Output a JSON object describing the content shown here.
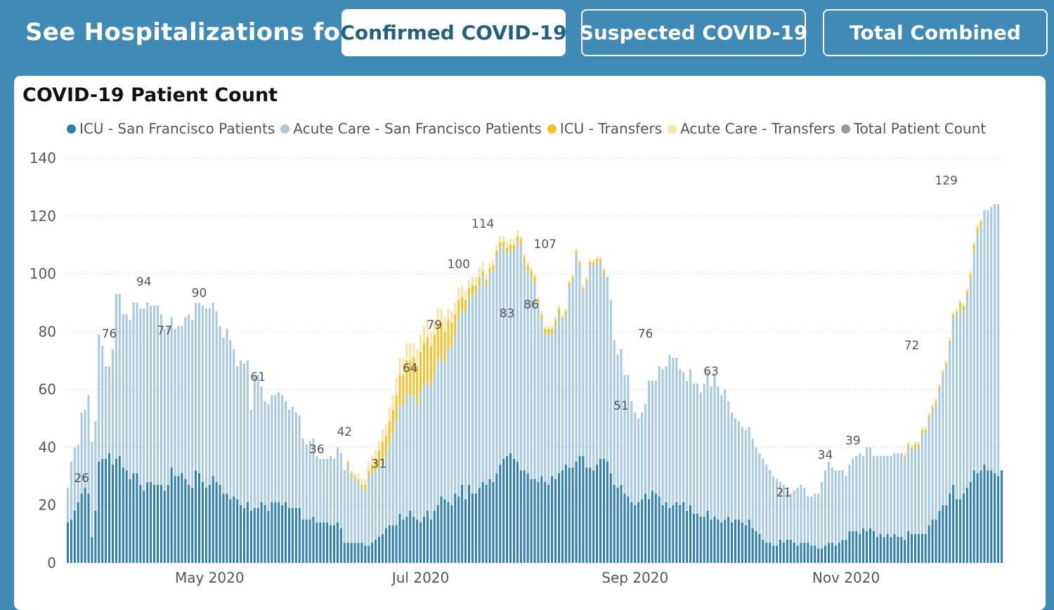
{
  "header": {
    "title": "See Hospitalizations for:",
    "tabs": [
      {
        "label": "Confirmed COVID-19",
        "active": true
      },
      {
        "label": "Suspected COVID-19",
        "active": false
      },
      {
        "label": "Total Combined",
        "active": false
      }
    ]
  },
  "colors": {
    "background": "#3f8bb5",
    "icu_sf": "#2e7fab",
    "acute_sf": "#a7cadf",
    "icu_transfers": "#f2c12e",
    "acute_transfers": "#f9e3a8",
    "total": "#999999"
  },
  "chart_data": {
    "type": "bar",
    "stacked": true,
    "title": "COVID-19 Patient Count",
    "x_start": "2020-03-21",
    "x_ticks": [
      "May 2020",
      "Jul 2020",
      "Sep 2020",
      "Nov 2020"
    ],
    "ylim": [
      0,
      140
    ],
    "y_ticks": [
      0,
      20,
      40,
      60,
      80,
      100,
      120,
      140
    ],
    "grid": true,
    "legend_position": "top",
    "series": [
      {
        "name": "ICU - San Francisco Patients",
        "color": "#2e7fab",
        "values": [
          14,
          15,
          18,
          21,
          24,
          26,
          24,
          9,
          18,
          35,
          36,
          36,
          38,
          34,
          36,
          37,
          33,
          32,
          29,
          31,
          31,
          27,
          25,
          28,
          28,
          27,
          27,
          27,
          25,
          27,
          33,
          30,
          30,
          31,
          29,
          27,
          26,
          32,
          31,
          28,
          26,
          27,
          30,
          28,
          27,
          24,
          24,
          22,
          23,
          22,
          20,
          19,
          21,
          18,
          19,
          19,
          21,
          20,
          18,
          21,
          21,
          21,
          20,
          21,
          19,
          19,
          19,
          19,
          15,
          15,
          15,
          16,
          14,
          14,
          14,
          14,
          13,
          13,
          14,
          12,
          7,
          7,
          7,
          7,
          7,
          7,
          6,
          6,
          7,
          8,
          9,
          10,
          12,
          13,
          13,
          13,
          17,
          15,
          16,
          18,
          16,
          15,
          14,
          16,
          18,
          15,
          18,
          20,
          23,
          22,
          21,
          20,
          24,
          23,
          27,
          22,
          27,
          24,
          24,
          26,
          28,
          27,
          29,
          28,
          31,
          34,
          36,
          37,
          38,
          36,
          35,
          32,
          32,
          31,
          29,
          29,
          28,
          30,
          28,
          27,
          30,
          29,
          31,
          32,
          34,
          33,
          33,
          35,
          37,
          37,
          33,
          33,
          32,
          34,
          36,
          36,
          35,
          31,
          27,
          26,
          27,
          24,
          23,
          21,
          20,
          21,
          22,
          24,
          22,
          25,
          24,
          23,
          20,
          21,
          19,
          20,
          21,
          20,
          21,
          18,
          20,
          17,
          17,
          16,
          16,
          18,
          15,
          16,
          15,
          14,
          15,
          16,
          14,
          15,
          15,
          14,
          13,
          15,
          12,
          11,
          10,
          8,
          7,
          7,
          6,
          6,
          8,
          7,
          8,
          8,
          7,
          6,
          7,
          7,
          7,
          6,
          6,
          5,
          5,
          6,
          7,
          7,
          6,
          7,
          8,
          8,
          11,
          11,
          11,
          10,
          12,
          11,
          12,
          11,
          9,
          10,
          9,
          10,
          9,
          10,
          9,
          9,
          8,
          11,
          10,
          10,
          10,
          10,
          10,
          13,
          15,
          15,
          18,
          20,
          20,
          24,
          27,
          22,
          22,
          24,
          26,
          28,
          32,
          31,
          32,
          34,
          32,
          32,
          31,
          30,
          32
        ]
      },
      {
        "name": "Acute Care - San Francisco Patients",
        "color": "#a7cadf",
        "values": [
          12,
          20,
          22,
          20,
          28,
          27,
          34,
          33,
          31,
          44,
          39,
          32,
          30,
          40,
          57,
          56,
          53,
          54,
          55,
          59,
          59,
          61,
          63,
          62,
          61,
          62,
          62,
          59,
          56,
          55,
          52,
          51,
          52,
          51,
          56,
          59,
          58,
          58,
          59,
          61,
          62,
          61,
          60,
          59,
          55,
          54,
          57,
          55,
          51,
          46,
          50,
          50,
          49,
          35,
          46,
          46,
          40,
          36,
          37,
          37,
          37,
          38,
          38,
          35,
          34,
          35,
          33,
          32,
          28,
          26,
          27,
          27,
          23,
          22,
          22,
          22,
          24,
          23,
          26,
          26,
          25,
          27,
          23,
          22,
          21,
          19,
          19,
          24,
          24,
          24,
          24,
          25,
          25,
          28,
          32,
          36,
          38,
          39,
          42,
          40,
          42,
          40,
          45,
          45,
          45,
          46,
          47,
          50,
          48,
          47,
          53,
          55,
          55,
          62,
          60,
          65,
          64,
          69,
          69,
          70,
          71,
          69,
          71,
          73,
          75,
          75,
          73,
          70,
          70,
          72,
          76,
          78,
          72,
          70,
          70,
          68,
          61,
          54,
          51,
          52,
          49,
          53,
          55,
          52,
          52,
          63,
          65,
          72,
          66,
          57,
          64,
          70,
          71,
          70,
          68,
          64,
          64,
          60,
          50,
          46,
          47,
          41,
          42,
          35,
          32,
          29,
          30,
          31,
          41,
          38,
          39,
          45,
          47,
          47,
          53,
          51,
          50,
          47,
          45,
          45,
          47,
          45,
          45,
          43,
          46,
          48,
          46,
          49,
          46,
          44,
          45,
          40,
          38,
          35,
          34,
          33,
          33,
          32,
          31,
          29,
          28,
          28,
          27,
          25,
          24,
          23,
          20,
          20,
          17,
          16,
          18,
          20,
          20,
          19,
          16,
          17,
          18,
          19,
          23,
          26,
          28,
          26,
          26,
          25,
          24,
          22,
          23,
          25,
          26,
          28,
          25,
          29,
          28,
          26,
          28,
          27,
          28,
          27,
          28,
          28,
          29,
          29,
          28,
          29,
          29,
          30,
          30,
          35,
          35,
          37,
          38,
          40,
          42,
          45,
          48,
          52,
          58,
          64,
          66,
          63,
          66,
          70,
          76,
          83,
          84,
          88,
          90,
          91,
          93,
          94
        ]
      },
      {
        "name": "ICU - Transfers",
        "color": "#f2c12e",
        "values": [
          0,
          0,
          0,
          0,
          0,
          0,
          0,
          0,
          0,
          0,
          0,
          0,
          0,
          0,
          0,
          0,
          0,
          0,
          0,
          0,
          0,
          0,
          0,
          0,
          0,
          0,
          0,
          0,
          0,
          0,
          0,
          0,
          0,
          0,
          0,
          0,
          0,
          0,
          0,
          0,
          0,
          0,
          0,
          0,
          0,
          0,
          0,
          0,
          0,
          0,
          0,
          0,
          0,
          0,
          0,
          0,
          0,
          0,
          0,
          0,
          0,
          0,
          0,
          0,
          0,
          0,
          0,
          0,
          0,
          0,
          0,
          0,
          0,
          0,
          0,
          0,
          0,
          0,
          0,
          0,
          0,
          1,
          1,
          1,
          1,
          1,
          2,
          2,
          3,
          4,
          6,
          7,
          7,
          8,
          8,
          9,
          10,
          11,
          12,
          12,
          13,
          13,
          14,
          15,
          15,
          14,
          14,
          13,
          12,
          11,
          10,
          8,
          7,
          6,
          5,
          4,
          4,
          3,
          3,
          3,
          2,
          2,
          2,
          2,
          2,
          2,
          2,
          2,
          2,
          2,
          2,
          2,
          2,
          2,
          2,
          2,
          2,
          2,
          2,
          2,
          2,
          2,
          2,
          1,
          1,
          1,
          1,
          1,
          1,
          1,
          1,
          1,
          1,
          1,
          1,
          1,
          0,
          0,
          0,
          0,
          0,
          0,
          0,
          0,
          0,
          0,
          0,
          0,
          0,
          0,
          0,
          0,
          0,
          0,
          0,
          0,
          0,
          0,
          0,
          0,
          0,
          0,
          0,
          0,
          0,
          0,
          0,
          0,
          0,
          0,
          0,
          0,
          0,
          0,
          0,
          0,
          0,
          0,
          0,
          0,
          0,
          0,
          0,
          0,
          0,
          0,
          0,
          0,
          0,
          0,
          0,
          0,
          0,
          0,
          0,
          0,
          0,
          0,
          0,
          0,
          0,
          0,
          0,
          0,
          0,
          0,
          0,
          0,
          0,
          0,
          0,
          0,
          0,
          0,
          0,
          0,
          0,
          0,
          0,
          0,
          0,
          0,
          1,
          1,
          1,
          1,
          1,
          1,
          1,
          1,
          1,
          1,
          1,
          1,
          1,
          1,
          1,
          1,
          2,
          2,
          2,
          2,
          2,
          2,
          2
        ]
      },
      {
        "name": "Acute Care - Transfers",
        "color": "#f9e3a8",
        "values": [
          0,
          0,
          0,
          0,
          0,
          0,
          0,
          0,
          0,
          0,
          0,
          0,
          0,
          0,
          0,
          0,
          0,
          0,
          0,
          0,
          0,
          0,
          0,
          0,
          0,
          0,
          0,
          0,
          0,
          0,
          0,
          0,
          0,
          0,
          0,
          0,
          0,
          0,
          0,
          0,
          0,
          0,
          0,
          0,
          0,
          0,
          0,
          0,
          0,
          0,
          0,
          0,
          0,
          0,
          0,
          0,
          0,
          0,
          0,
          0,
          0,
          0,
          0,
          0,
          0,
          0,
          0,
          0,
          0,
          0,
          0,
          0,
          0,
          0,
          0,
          0,
          0,
          0,
          0,
          0,
          0,
          1,
          1,
          1,
          2,
          2,
          2,
          3,
          3,
          3,
          3,
          4,
          4,
          5,
          5,
          6,
          6,
          6,
          6,
          6,
          5,
          6,
          6,
          6,
          6,
          5,
          5,
          5,
          5,
          5,
          4,
          4,
          4,
          4,
          4,
          3,
          3,
          3,
          3,
          3,
          3,
          2,
          2,
          2,
          2,
          2,
          2,
          2,
          2,
          2,
          2,
          1,
          1,
          1,
          1,
          1,
          1,
          1,
          1,
          1,
          1,
          1,
          1,
          1,
          1,
          1,
          1,
          1,
          1,
          1,
          1,
          1,
          1,
          1,
          1,
          1,
          0,
          0,
          0,
          0,
          0,
          0,
          0,
          0,
          0,
          0,
          0,
          0,
          0,
          0,
          0,
          0,
          0,
          0,
          0,
          0,
          0,
          0,
          0,
          0,
          0,
          0,
          0,
          0,
          0,
          0,
          0,
          0,
          0,
          0,
          0,
          0,
          0,
          0,
          0,
          0,
          0,
          0,
          0,
          0,
          0,
          0,
          0,
          0,
          0,
          0,
          0,
          0,
          0,
          0,
          0,
          0,
          0,
          0,
          0,
          0,
          0,
          0,
          0,
          0,
          0,
          0,
          0,
          0,
          0,
          0,
          0,
          0,
          0,
          0,
          0,
          0,
          0,
          0,
          0,
          0,
          0,
          0,
          0,
          0,
          0,
          0,
          1,
          1,
          1,
          1,
          1,
          1,
          1,
          1,
          1,
          1,
          1,
          1,
          1,
          1,
          1,
          1,
          1,
          1,
          1,
          1,
          1,
          1,
          1
        ]
      },
      {
        "name": "Total Patient Count",
        "color": "#999999",
        "values": []
      }
    ],
    "annotations": [
      {
        "label": "26",
        "x": "2020-03-25",
        "y": 26
      },
      {
        "label": "76",
        "x": "2020-04-02",
        "y": 76
      },
      {
        "label": "94",
        "x": "2020-04-12",
        "y": 94
      },
      {
        "label": "77",
        "x": "2020-04-18",
        "y": 77
      },
      {
        "label": "90",
        "x": "2020-04-28",
        "y": 90
      },
      {
        "label": "61",
        "x": "2020-05-15",
        "y": 61
      },
      {
        "label": "36",
        "x": "2020-06-01",
        "y": 36
      },
      {
        "label": "42",
        "x": "2020-06-09",
        "y": 42
      },
      {
        "label": "31",
        "x": "2020-06-19",
        "y": 31
      },
      {
        "label": "64",
        "x": "2020-06-28",
        "y": 64
      },
      {
        "label": "79",
        "x": "2020-07-05",
        "y": 79
      },
      {
        "label": "100",
        "x": "2020-07-12",
        "y": 100
      },
      {
        "label": "114",
        "x": "2020-07-19",
        "y": 114
      },
      {
        "label": "83",
        "x": "2020-07-26",
        "y": 83
      },
      {
        "label": "86",
        "x": "2020-08-02",
        "y": 86
      },
      {
        "label": "107",
        "x": "2020-08-06",
        "y": 107
      },
      {
        "label": "51",
        "x": "2020-08-28",
        "y": 51
      },
      {
        "label": "76",
        "x": "2020-09-04",
        "y": 76
      },
      {
        "label": "63",
        "x": "2020-09-23",
        "y": 63
      },
      {
        "label": "21",
        "x": "2020-10-14",
        "y": 21
      },
      {
        "label": "34",
        "x": "2020-10-26",
        "y": 34
      },
      {
        "label": "39",
        "x": "2020-11-03",
        "y": 39
      },
      {
        "label": "72",
        "x": "2020-11-20",
        "y": 72
      },
      {
        "label": "129",
        "x": "2020-11-30",
        "y": 129
      }
    ]
  }
}
